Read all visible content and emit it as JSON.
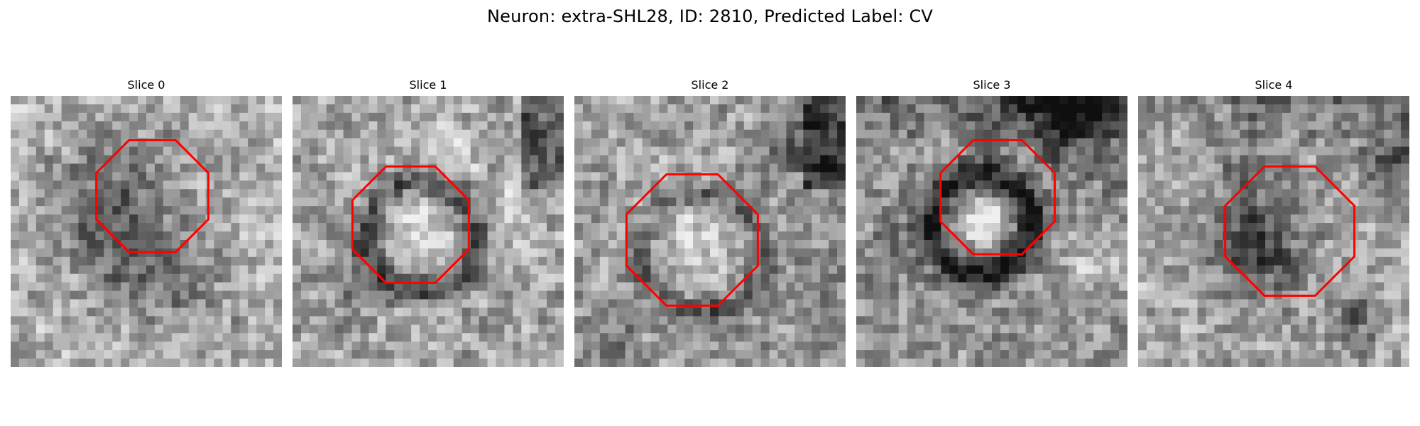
{
  "figure": {
    "title": "Neuron: extra-SHL28, ID: 2810, Predicted Label: CV"
  },
  "panels": [
    {
      "title": "Slice 0",
      "image": "grayscale-em-patch",
      "marker": "octagon-outline",
      "base": 172,
      "seed": 11,
      "ring": 0,
      "blobs": [
        [
          0.45,
          0.45,
          0.18,
          -105
        ],
        [
          0.6,
          0.38,
          0.12,
          45
        ],
        [
          0.62,
          0.7,
          0.1,
          -35
        ],
        [
          0.9,
          0.42,
          0.08,
          30
        ]
      ],
      "top_band": 0,
      "right_band": 0
    },
    {
      "title": "Slice 1",
      "image": "grayscale-em-patch",
      "marker": "octagon-outline",
      "base": 162,
      "seed": 23,
      "ring": 1,
      "blobs": [
        [
          0.45,
          0.46,
          0.1,
          62
        ],
        [
          0.58,
          0.18,
          0.1,
          28
        ],
        [
          0.82,
          0.42,
          0.08,
          35
        ],
        [
          0.22,
          0.7,
          0.08,
          -30
        ]
      ],
      "top_band": 0,
      "right_band": 1
    },
    {
      "title": "Slice 2",
      "image": "grayscale-em-patch",
      "marker": "octagon-outline",
      "base": 158,
      "seed": 37,
      "ring": 1,
      "blobs": [
        [
          0.4,
          0.52,
          0.14,
          45
        ],
        [
          0.85,
          0.2,
          0.1,
          -60
        ],
        [
          0.15,
          0.92,
          0.08,
          -40
        ],
        [
          0.88,
          0.64,
          0.08,
          -30
        ]
      ],
      "top_band": 0,
      "right_band": 1
    },
    {
      "title": "Slice 3",
      "image": "grayscale-em-patch",
      "marker": "octagon-outline",
      "base": 148,
      "seed": 53,
      "ring": 1,
      "blobs": [
        [
          0.47,
          0.47,
          0.08,
          72
        ],
        [
          0.8,
          0.06,
          0.14,
          -95
        ],
        [
          0.15,
          0.55,
          0.08,
          -35
        ],
        [
          0.86,
          0.64,
          0.1,
          38
        ]
      ],
      "top_band": 1,
      "right_band": 0
    },
    {
      "title": "Slice 4",
      "image": "grayscale-em-patch",
      "marker": "octagon-outline",
      "base": 165,
      "seed": 71,
      "ring": 0,
      "blobs": [
        [
          0.45,
          0.56,
          0.12,
          -95
        ],
        [
          0.93,
          0.25,
          0.08,
          -85
        ],
        [
          0.82,
          0.82,
          0.06,
          -60
        ],
        [
          0.4,
          0.3,
          0.09,
          -48
        ]
      ],
      "top_band": 1,
      "right_band": 0
    }
  ],
  "colors": {
    "marker": "#ff0000",
    "background": "#ffffff"
  }
}
